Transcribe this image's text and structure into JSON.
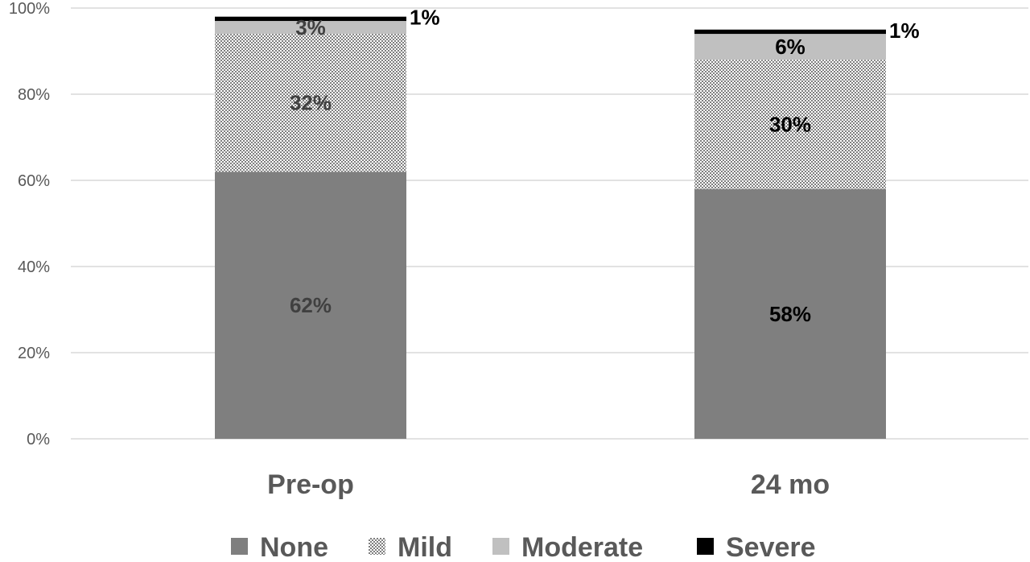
{
  "chart_data": {
    "type": "bar",
    "stacked": true,
    "percent_stacked": true,
    "categories": [
      "Pre-op",
      "24 mo"
    ],
    "series": [
      {
        "name": "None",
        "values": [
          62,
          58
        ],
        "labels": [
          "62%",
          "58%"
        ],
        "color": "#7f7f7f",
        "pattern": "solid"
      },
      {
        "name": "Mild",
        "values": [
          32,
          30
        ],
        "labels": [
          "32%",
          "30%"
        ],
        "color": "#7f7f7f",
        "pattern": "checker"
      },
      {
        "name": "Moderate",
        "values": [
          3,
          6
        ],
        "labels": [
          "3%",
          "6%"
        ],
        "color": "#c0c0c0",
        "pattern": "solid"
      },
      {
        "name": "Severe",
        "values": [
          1,
          1
        ],
        "labels": [
          "1%",
          "1%"
        ],
        "color": "#000000",
        "pattern": "solid"
      }
    ],
    "yticks": [
      "0%",
      "20%",
      "40%",
      "60%",
      "80%",
      "100%"
    ],
    "ylim": [
      0,
      100
    ],
    "grid": true,
    "legend": "bottom",
    "title": "",
    "xlabel": "",
    "ylabel": ""
  }
}
